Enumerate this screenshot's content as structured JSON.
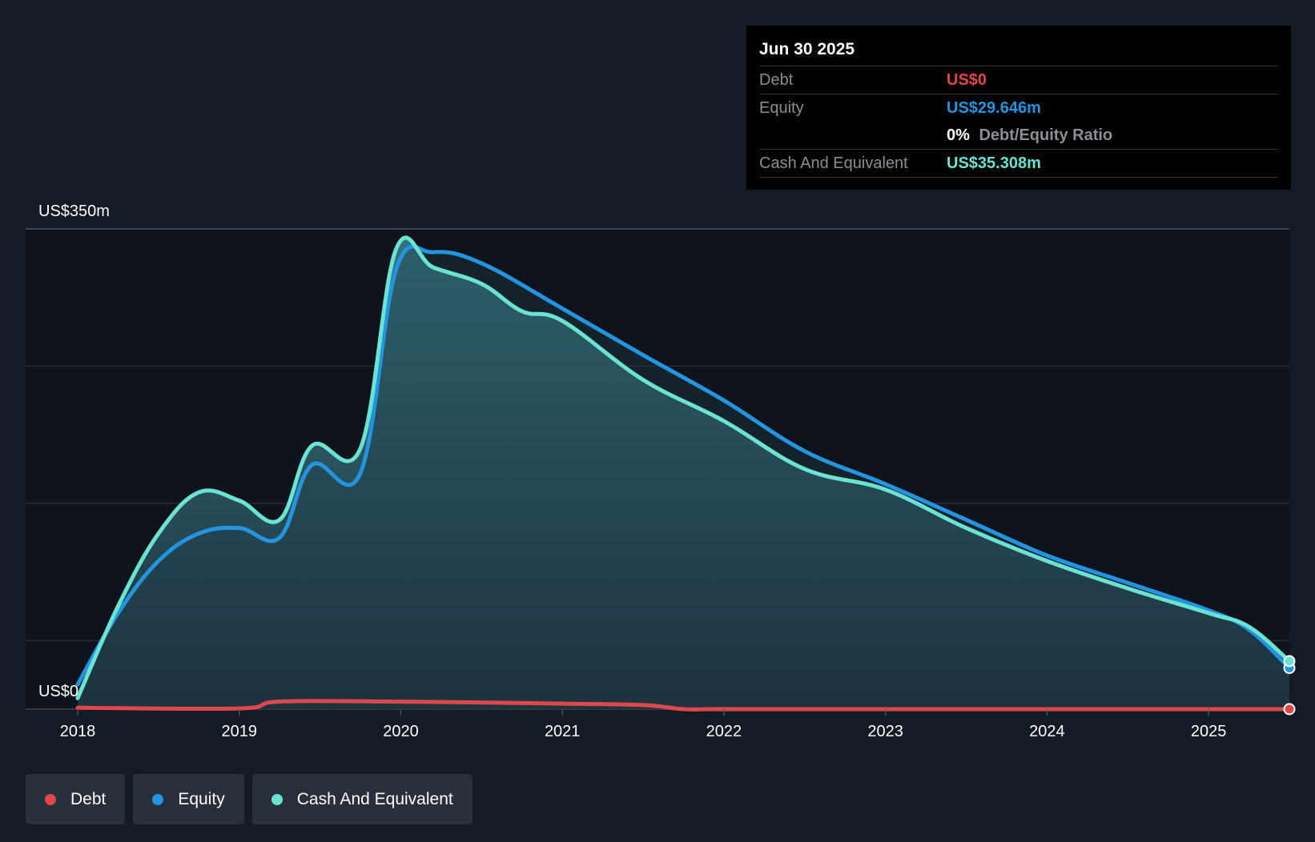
{
  "tooltip": {
    "date": "Jun 30 2025",
    "debt_label": "Debt",
    "debt_value": "US$0",
    "equity_label": "Equity",
    "equity_value": "US$29.646m",
    "ratio_pct": "0%",
    "ratio_label": "Debt/Equity Ratio",
    "cash_label": "Cash And Equivalent",
    "cash_value": "US$35.308m"
  },
  "legend": [
    {
      "label": "Debt",
      "color": "#e0474c"
    },
    {
      "label": "Equity",
      "color": "#2394df"
    },
    {
      "label": "Cash And Equivalent",
      "color": "#6ae3d2"
    }
  ],
  "chart_data": {
    "type": "area",
    "title": "",
    "y_top_label": "US$350m",
    "y_bottom_label": "US$0",
    "ylim": [
      0,
      350
    ],
    "xlim": [
      2018.0,
      2025.5
    ],
    "x_ticks": [
      "2018",
      "2019",
      "2020",
      "2021",
      "2022",
      "2023",
      "2024",
      "2025"
    ],
    "grid": true,
    "colors": {
      "debt": "#e0474c",
      "equity": "#2394df",
      "cash": "#6ae3d2"
    },
    "series": [
      {
        "name": "Debt",
        "x": [
          2018.0,
          2019.0,
          2019.25,
          2020.0,
          2021.0,
          2021.5,
          2021.75,
          2022.0,
          2023.0,
          2024.0,
          2025.0,
          2025.5
        ],
        "values": [
          1,
          0.5,
          5.5,
          5.5,
          4,
          3,
          0,
          0,
          0,
          0,
          0,
          0
        ]
      },
      {
        "name": "Equity",
        "x": [
          2018.0,
          2018.25,
          2018.5,
          2018.75,
          2019.0,
          2019.25,
          2019.45,
          2019.75,
          2019.97,
          2020.2,
          2020.5,
          2021.0,
          2021.5,
          2022.0,
          2022.5,
          2023.0,
          2023.5,
          2024.0,
          2024.5,
          2025.0,
          2025.25,
          2025.5
        ],
        "values": [
          18,
          70,
          108,
          128,
          132,
          125,
          178,
          172,
          320,
          333,
          325,
          292,
          258,
          225,
          188,
          164,
          138,
          112,
          92,
          72,
          58,
          30
        ]
      },
      {
        "name": "Cash And Equivalent",
        "x": [
          2018.0,
          2018.25,
          2018.5,
          2018.75,
          2019.0,
          2019.25,
          2019.45,
          2019.75,
          2019.97,
          2020.2,
          2020.5,
          2020.75,
          2021.0,
          2021.5,
          2022.0,
          2022.5,
          2023.0,
          2023.5,
          2024.0,
          2024.5,
          2025.0,
          2025.25,
          2025.5
        ],
        "values": [
          8,
          75,
          128,
          158,
          152,
          138,
          192,
          190,
          335,
          322,
          310,
          290,
          283,
          240,
          210,
          175,
          160,
          132,
          108,
          88,
          70,
          60,
          35
        ]
      }
    ]
  }
}
